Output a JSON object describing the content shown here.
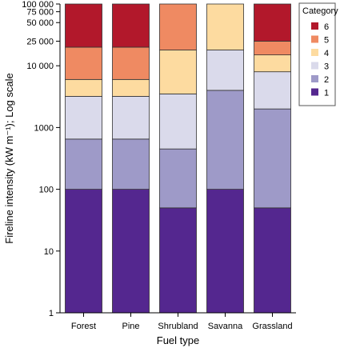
{
  "chart_data": {
    "type": "bar",
    "stacked": true,
    "log_scale_y": true,
    "ylim": [
      1,
      100000
    ],
    "yticks": [
      {
        "value": 1,
        "label": "1"
      },
      {
        "value": 10,
        "label": "10"
      },
      {
        "value": 100,
        "label": "100"
      },
      {
        "value": 1000,
        "label": "1000"
      },
      {
        "value": 10000,
        "label": "10 000"
      },
      {
        "value": 25000,
        "label": "25 000"
      },
      {
        "value": 50000,
        "label": "50 000"
      },
      {
        "value": 75000,
        "label": "75 000"
      },
      {
        "value": 100000,
        "label": "100 000"
      }
    ],
    "categories": [
      "Forest",
      "Pine",
      "Shrubland",
      "Savanna",
      "Grassland"
    ],
    "xlabel": "Fuel type",
    "ylabel": "Fireline intensity (kW m⁻¹); Log scale",
    "legend": {
      "title": "Category",
      "position": "top-right",
      "items": [
        {
          "label": "6",
          "color": "#b2182b"
        },
        {
          "label": "5",
          "color": "#ef8a62"
        },
        {
          "label": "4",
          "color": "#fddbA0"
        },
        {
          "label": "3",
          "color": "#dadaeb"
        },
        {
          "label": "2",
          "color": "#9e9ac8"
        },
        {
          "label": "1",
          "color": "#54278f"
        }
      ]
    },
    "category_bounds": [
      {
        "category": "Forest",
        "upper_bounds": [
          100,
          650,
          3200,
          6000,
          20000,
          100000
        ]
      },
      {
        "category": "Pine",
        "upper_bounds": [
          100,
          650,
          3200,
          6000,
          20000,
          100000
        ]
      },
      {
        "category": "Shrubland",
        "upper_bounds": [
          50,
          450,
          3500,
          18000,
          100000
        ]
      },
      {
        "category": "Savanna",
        "upper_bounds": [
          100,
          4000,
          18000,
          100000
        ]
      },
      {
        "category": "Grassland",
        "upper_bounds": [
          50,
          2000,
          8000,
          15000,
          25000,
          100000
        ]
      }
    ],
    "series_order": [
      "1",
      "2",
      "3",
      "4",
      "5",
      "6"
    ],
    "grid": false
  }
}
